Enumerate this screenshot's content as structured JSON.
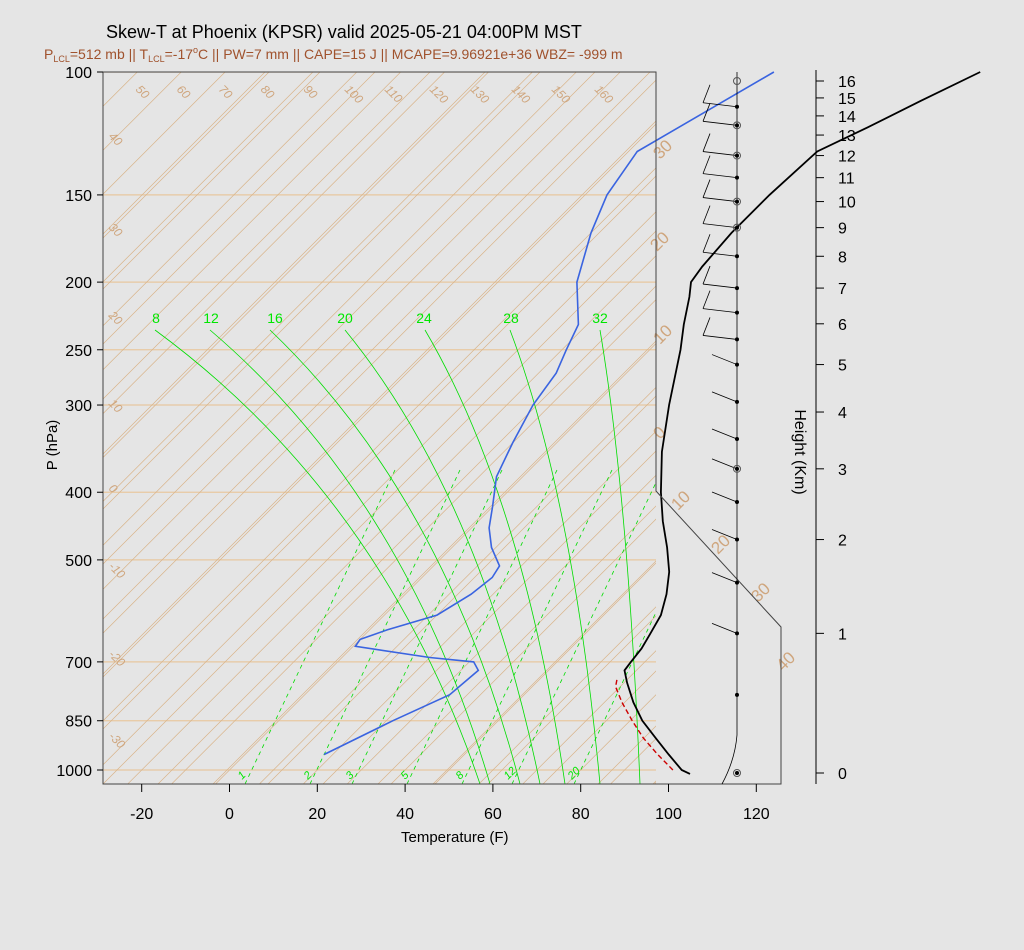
{
  "header": {
    "title": "Skew-T at Phoenix (KPSR) valid 2025-05-21 04:00PM MST",
    "p_lcl_label": "P",
    "p_lcl_sub": "LCL",
    "p_lcl_value": "=512 mb || T",
    "t_lcl_sub": "LCL",
    "t_lcl_value": "=-17",
    "deg_o": "o",
    "rest": "C || PW=7 mm || CAPE=15 J || MCAPE=9.96921e+36 WBZ= -999 m"
  },
  "colors": {
    "background": "#e5e5e5",
    "grid": "#d9b48a",
    "temperature": "#000000",
    "dewpoint": "#3a64e0",
    "parcel": "#cc0000",
    "mixing_ratio": "#00dd00",
    "isobar": "#e8c8a0"
  },
  "chart_data": {
    "type": "line",
    "title": "Skew-T at Phoenix (KPSR) valid 2025-05-21 04:00PM MST",
    "xlabel": "Temperature (F)",
    "ylabel": "P (hPa)",
    "y2label": "Height (Km)",
    "y_scale": "log",
    "ylim": [
      1050,
      100
    ],
    "xlim": [
      -28,
      125
    ],
    "pressure_ticks": [
      100,
      150,
      200,
      250,
      300,
      400,
      500,
      700,
      850,
      1000
    ],
    "pressure_tick_labels": [
      "100",
      "150",
      "200",
      "250",
      "300",
      "400",
      "500",
      "700",
      "850",
      "1000"
    ],
    "temperature_ticks": [
      -20,
      0,
      20,
      40,
      60,
      80,
      100,
      120
    ],
    "temperature_tick_labels": [
      "-20",
      "0",
      "20",
      "40",
      "60",
      "80",
      "100",
      "120"
    ],
    "height_ticks": [
      0,
      1,
      2,
      3,
      4,
      5,
      6,
      7,
      8,
      9,
      10,
      11,
      12,
      13,
      14,
      15,
      16
    ],
    "height_tick_labels": [
      "0",
      "1",
      "2",
      "3",
      "4",
      "5",
      "6",
      "7",
      "8",
      "9",
      "10",
      "11",
      "12",
      "13",
      "14",
      "15",
      "16"
    ],
    "isotherm_labels": [
      "50",
      "60",
      "70",
      "80",
      "90",
      "100",
      "110",
      "120",
      "130",
      "140",
      "150",
      "160"
    ],
    "isotherm_labels_left": [
      "40",
      "30",
      "20",
      "10",
      "0",
      "-10",
      "-20",
      "-30"
    ],
    "isotherm_labels_right": [
      "30",
      "20",
      "10",
      "0",
      "10",
      "20",
      "30",
      "40"
    ],
    "theta_e_labels": [
      "8",
      "12",
      "16",
      "20",
      "24",
      "28",
      "32"
    ],
    "mixing_ratio_labels": [
      "1",
      "2",
      "3",
      "5",
      "8",
      "12",
      "20"
    ],
    "series": [
      {
        "name": "Temperature",
        "points": [
          [
            1013,
            105.8
          ],
          [
            1000,
            103.0
          ],
          [
            950,
            96.5
          ],
          [
            900,
            89.8
          ],
          [
            850,
            82.8
          ],
          [
            800,
            76.6
          ],
          [
            750,
            70.7
          ],
          [
            720,
            67.3
          ],
          [
            700,
            66.8
          ],
          [
            670,
            66.2
          ],
          [
            640,
            64.9
          ],
          [
            600,
            63.0
          ],
          [
            560,
            59.5
          ],
          [
            520,
            55.0
          ],
          [
            480,
            49.0
          ],
          [
            440,
            42.0
          ],
          [
            400,
            35.0
          ],
          [
            350,
            26.0
          ],
          [
            300,
            17.0
          ],
          [
            250,
            7.0
          ],
          [
            230,
            2.0
          ],
          [
            210,
            -3.0
          ],
          [
            200,
            -6.0
          ],
          [
            190,
            -7.0
          ],
          [
            170,
            -8.0
          ],
          [
            150,
            -8.0
          ],
          [
            130,
            -7.0
          ],
          [
            120,
            -1.0
          ],
          [
            110,
            5.0
          ],
          [
            100,
            12.0
          ]
        ]
      },
      {
        "name": "Dewpoint",
        "points": [
          [
            950,
            18.0
          ],
          [
            850,
            26.0
          ],
          [
            780,
            33.0
          ],
          [
            720,
            34.0
          ],
          [
            700,
            31.0
          ],
          [
            690,
            20.0
          ],
          [
            665,
            0.5
          ],
          [
            650,
            0.0
          ],
          [
            630,
            4.0
          ],
          [
            600,
            12.0
          ],
          [
            560,
            15.0
          ],
          [
            530,
            16.0
          ],
          [
            510,
            15.0
          ],
          [
            480,
            9.0
          ],
          [
            450,
            4.0
          ],
          [
            420,
            0.0
          ],
          [
            380,
            -6.0
          ],
          [
            340,
            -10.0
          ],
          [
            300,
            -14.0
          ],
          [
            270,
            -16.0
          ],
          [
            250,
            -19.0
          ],
          [
            230,
            -22.0
          ],
          [
            200,
            -32.0
          ],
          [
            170,
            -40.0
          ],
          [
            150,
            -45.0
          ],
          [
            130,
            -48.0
          ],
          [
            100,
            -35.0
          ]
        ]
      },
      {
        "name": "Parcel",
        "points": [
          [
            1000,
            101.0
          ],
          [
            950,
            94.0
          ],
          [
            900,
            87.0
          ],
          [
            850,
            80.5
          ],
          [
            800,
            74.0
          ],
          [
            760,
            69.0
          ],
          [
            740,
            67.5
          ]
        ]
      }
    ],
    "winds": [
      {
        "height_km": 0.0,
        "label_height": "0"
      },
      {
        "height_km": 0.5,
        "label_height": "0.5"
      },
      {
        "height_km": 1.0,
        "label_height": "1"
      },
      {
        "height_km": 1.5,
        "label_height": "1.5"
      },
      {
        "height_km": 2.0,
        "label_height": "2"
      },
      {
        "height_km": 2.5,
        "label_height": "2.5"
      },
      {
        "height_km": 3.0,
        "label_height": "3"
      },
      {
        "height_km": 3.5,
        "label_height": "3.5"
      },
      {
        "height_km": 4.2,
        "label_height": "4.2"
      },
      {
        "height_km": 5.0,
        "label_height": "5"
      },
      {
        "height_km": 5.6,
        "label_height": "5.6"
      },
      {
        "height_km": 6.3,
        "label_height": "6.3"
      },
      {
        "height_km": 7.0,
        "label_height": "7"
      },
      {
        "height_km": 8.0,
        "label_height": "8"
      },
      {
        "height_km": 9.0,
        "label_height": "9"
      },
      {
        "height_km": 10.0,
        "label_height": "10"
      },
      {
        "height_km": 11.0,
        "label_height": "11"
      },
      {
        "height_km": 12.0,
        "label_height": "12"
      },
      {
        "height_km": 13.5,
        "label_height": "13.5"
      },
      {
        "height_km": 14.5,
        "label_height": "14.5"
      }
    ]
  }
}
